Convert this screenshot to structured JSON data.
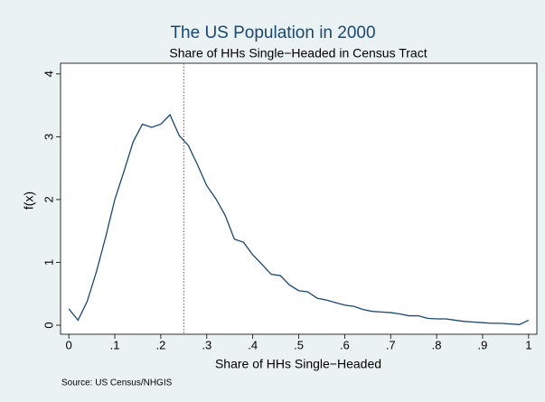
{
  "chart_data": {
    "type": "line",
    "title": "The US Population in 2000",
    "subtitle": "Share of HHs Single−Headed in Census Tract",
    "xlabel": "Share of HHs Single−Headed",
    "ylabel": "f(x)",
    "source": "Source:  US Census/NHGIS",
    "x": [
      0,
      0.02,
      0.04,
      0.06,
      0.08,
      0.1,
      0.12,
      0.14,
      0.16,
      0.18,
      0.2,
      0.22,
      0.24,
      0.26,
      0.28,
      0.3,
      0.32,
      0.34,
      0.36,
      0.38,
      0.4,
      0.42,
      0.44,
      0.46,
      0.48,
      0.5,
      0.52,
      0.54,
      0.56,
      0.58,
      0.6,
      0.62,
      0.64,
      0.66,
      0.68,
      0.7,
      0.72,
      0.74,
      0.76,
      0.78,
      0.8,
      0.82,
      0.84,
      0.86,
      0.88,
      0.9,
      0.92,
      0.94,
      0.96,
      0.98,
      1
    ],
    "values": [
      0.26,
      0.08,
      0.38,
      0.85,
      1.4,
      2.0,
      2.45,
      2.92,
      3.2,
      3.15,
      3.2,
      3.35,
      3.02,
      2.86,
      2.55,
      2.22,
      2.01,
      1.75,
      1.37,
      1.32,
      1.12,
      0.97,
      0.81,
      0.79,
      0.64,
      0.55,
      0.53,
      0.43,
      0.4,
      0.36,
      0.32,
      0.3,
      0.25,
      0.22,
      0.21,
      0.2,
      0.18,
      0.15,
      0.15,
      0.11,
      0.1,
      0.1,
      0.08,
      0.06,
      0.05,
      0.04,
      0.03,
      0.03,
      0.02,
      0.01,
      0.08
    ],
    "color": "#1a476f",
    "vline": 0.25,
    "vline_color": "#d62728",
    "xlim": [
      -0.018,
      1.018
    ],
    "ylim": [
      -0.144,
      4.17
    ],
    "xticks": [
      0,
      {
        "value": 0.1,
        "label": ".1"
      },
      {
        "value": 0.2,
        "label": ".2"
      },
      {
        "value": 0.3,
        "label": ".3"
      },
      {
        "value": 0.4,
        "label": ".4"
      },
      {
        "value": 0.5,
        "label": ".5"
      },
      {
        "value": 0.6,
        "label": ".6"
      },
      {
        "value": 0.7,
        "label": ".7"
      },
      {
        "value": 0.8,
        "label": ".8"
      },
      {
        "value": 0.9,
        "label": ".9"
      },
      1
    ],
    "yticks": [
      0,
      1,
      2,
      3,
      4
    ],
    "grid": false
  }
}
